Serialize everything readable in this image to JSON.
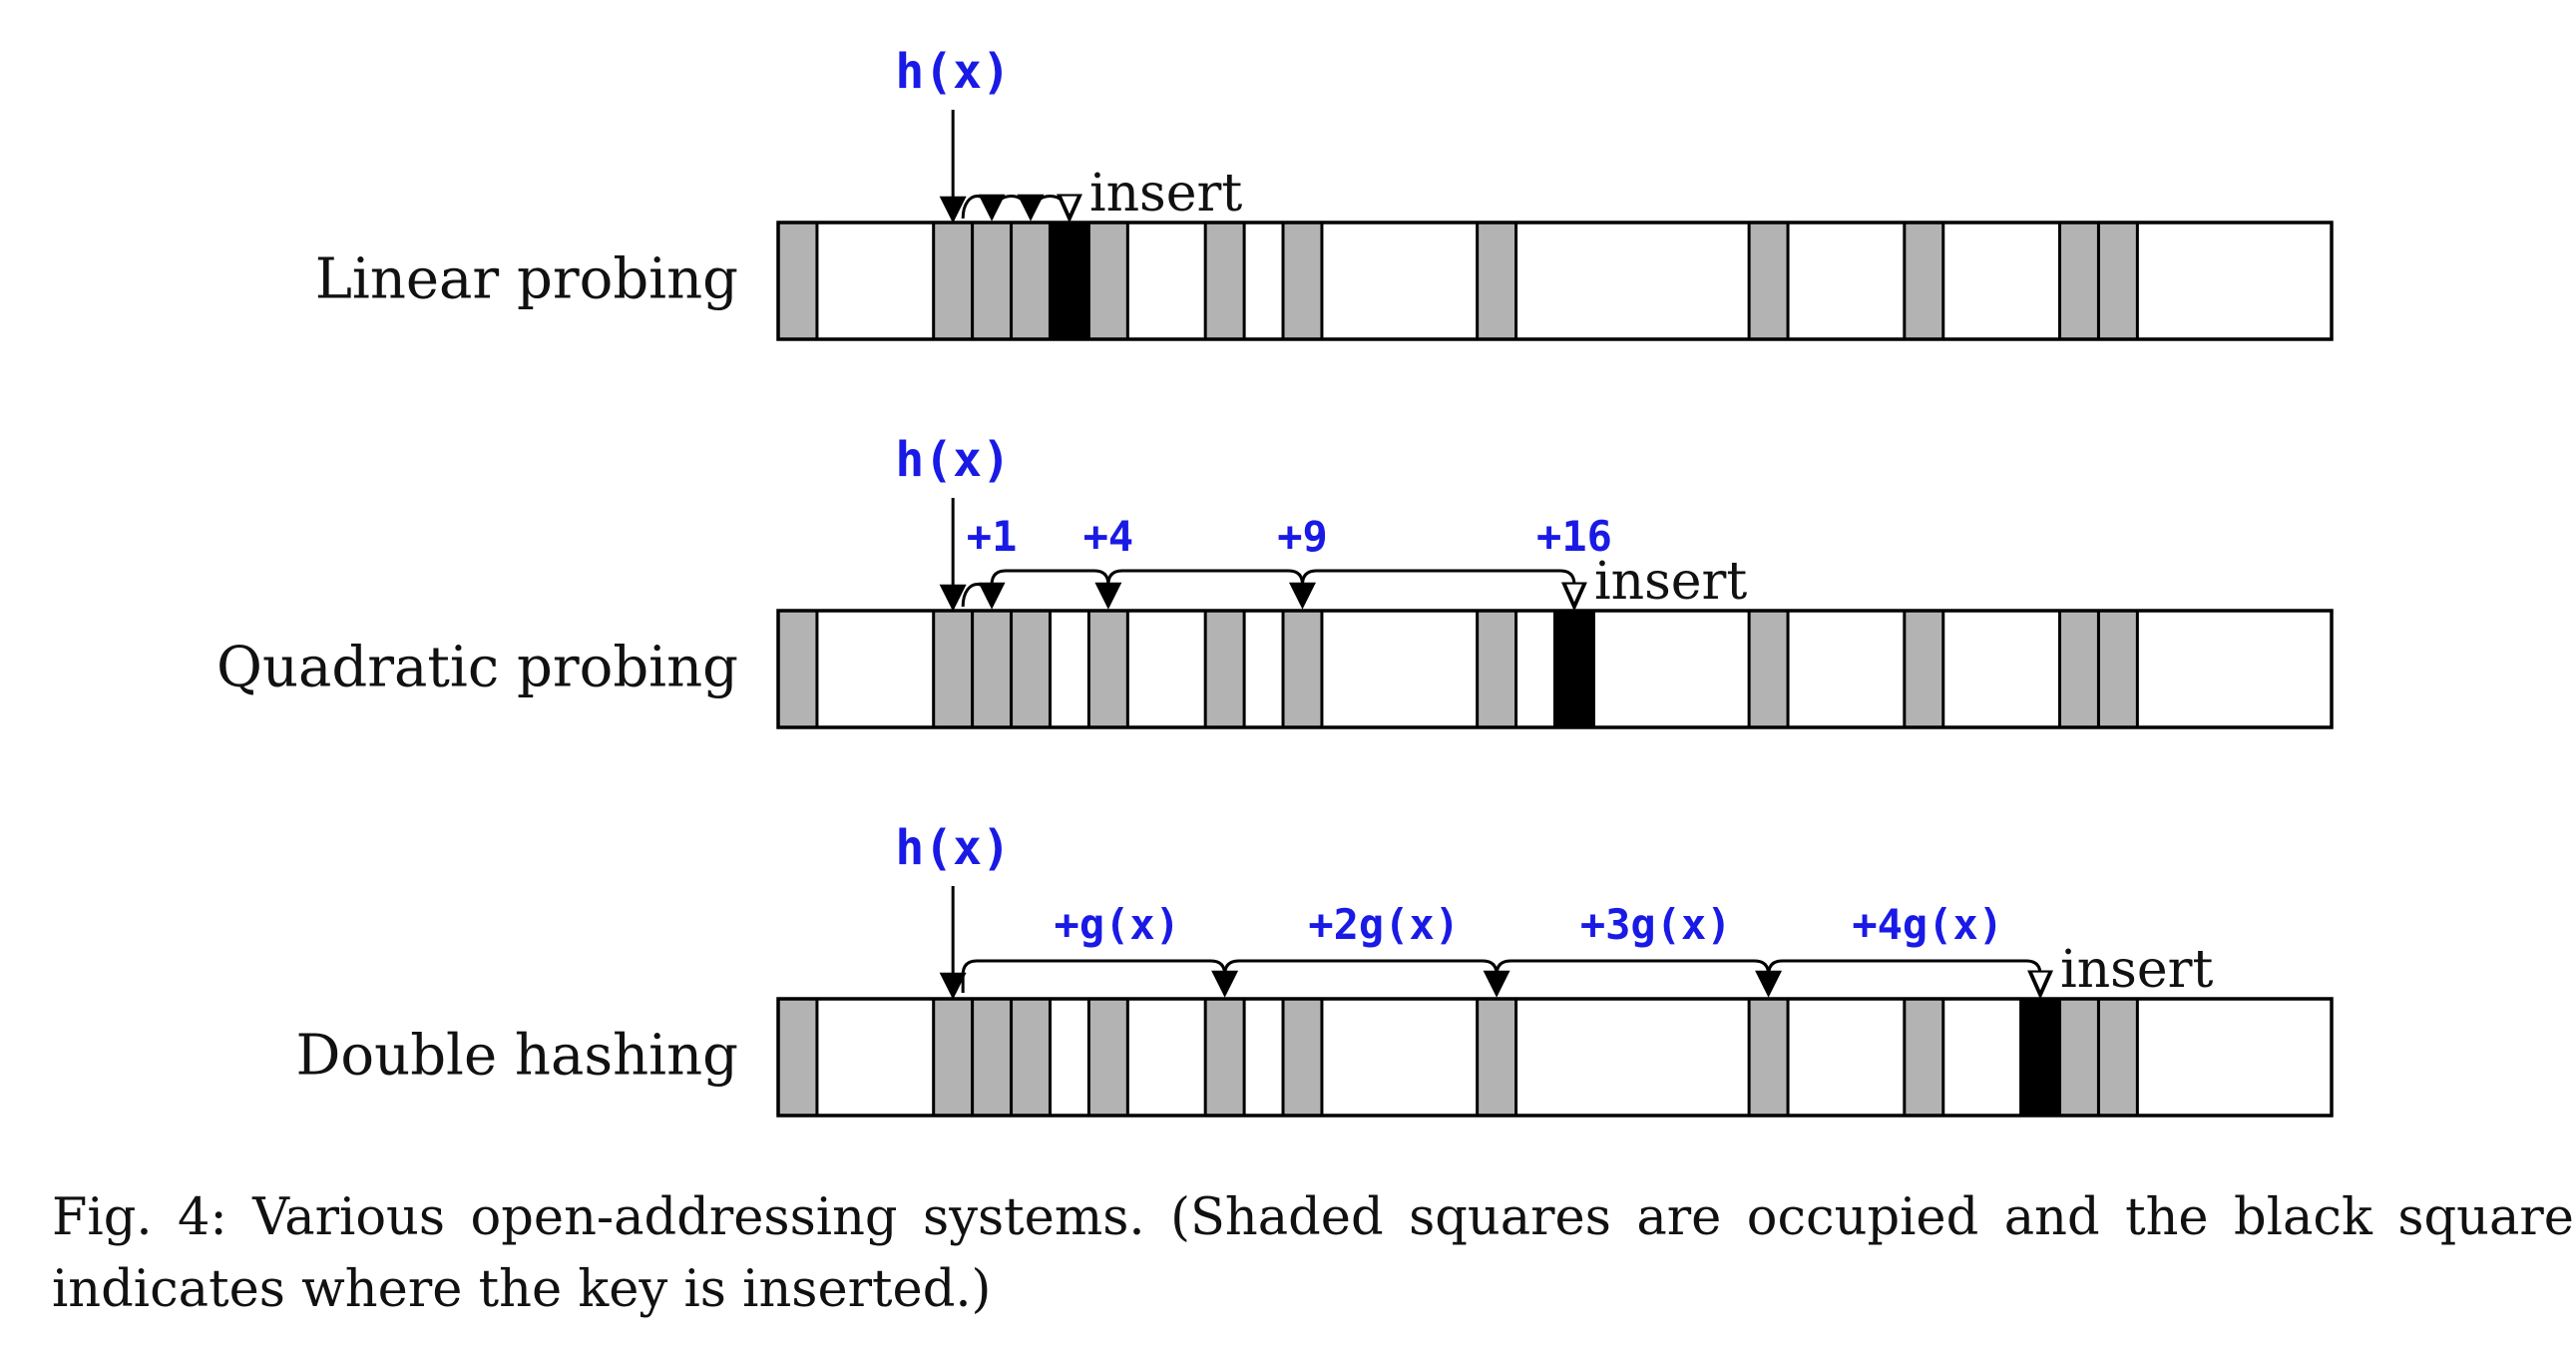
{
  "colors": {
    "occupied": "#b3b3b3",
    "inserted": "#000000",
    "empty": "#ffffff",
    "accent": "#1a1ae6",
    "stroke": "#000000"
  },
  "hash_label": "h(x)",
  "insert_label": "insert",
  "table": {
    "slots": 40,
    "occupied": [
      0,
      4,
      5,
      6,
      8,
      11,
      13,
      18,
      25,
      29,
      33,
      34
    ]
  },
  "rows": [
    {
      "label": "Linear probing",
      "start": 4,
      "inserted": 7,
      "probes": [
        5,
        6,
        7
      ],
      "step_labels": []
    },
    {
      "label": "Quadratic probing",
      "start": 4,
      "inserted": 20,
      "probes": [
        5,
        8,
        13,
        20
      ],
      "step_labels": [
        "+1",
        "+4",
        "+9",
        "+16"
      ]
    },
    {
      "label": "Double hashing",
      "start": 4,
      "inserted": 32,
      "probes": [
        11,
        18,
        25,
        32
      ],
      "step_labels": [
        "+g(x)",
        "+2g(x)",
        "+3g(x)",
        "+4g(x)"
      ]
    }
  ],
  "caption": "Fig. 4: Various open-addressing systems. (Shaded squares are occupied and the black square indicates where the key is inserted.)"
}
